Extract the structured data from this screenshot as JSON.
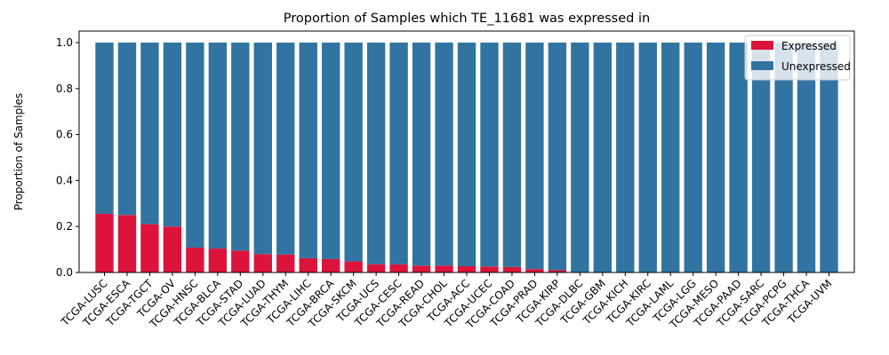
{
  "chart_data": {
    "type": "bar",
    "stacked": true,
    "title": "Proportion of Samples which TE_11681 was expressed in",
    "xlabel": "",
    "ylabel": "Proportion of Samples",
    "ylim": [
      0,
      1.05
    ],
    "yticks": [
      "0.0",
      "0.2",
      "0.4",
      "0.6",
      "0.8",
      "1.0"
    ],
    "legend_position": "top-right",
    "categories": [
      "TCGA-LUSC",
      "TCGA-ESCA",
      "TCGA-TGCT",
      "TCGA-OV",
      "TCGA-HNSC",
      "TCGA-BLCA",
      "TCGA-STAD",
      "TCGA-LUAD",
      "TCGA-THYM",
      "TCGA-LIHC",
      "TCGA-BRCA",
      "TCGA-SKCM",
      "TCGA-UCS",
      "TCGA-CESC",
      "TCGA-READ",
      "TCGA-CHOL",
      "TCGA-ACC",
      "TCGA-UCEC",
      "TCGA-COAD",
      "TCGA-PRAD",
      "TCGA-KIRP",
      "TCGA-DLBC",
      "TCGA-GBM",
      "TCGA-KICH",
      "TCGA-KIRC",
      "TCGA-LAML",
      "TCGA-LGG",
      "TCGA-MESO",
      "TCGA-PAAD",
      "TCGA-SARC",
      "TCGA-PCPG",
      "TCGA-THCA",
      "TCGA-UVM"
    ],
    "series": [
      {
        "name": "Expressed",
        "color": "#dc143c",
        "values": [
          0.255,
          0.25,
          0.21,
          0.2,
          0.108,
          0.104,
          0.095,
          0.08,
          0.078,
          0.062,
          0.058,
          0.048,
          0.036,
          0.035,
          0.03,
          0.03,
          0.027,
          0.026,
          0.024,
          0.015,
          0.01,
          0,
          0,
          0,
          0,
          0,
          0,
          0,
          0,
          0,
          0,
          0,
          0
        ]
      },
      {
        "name": "Unexpressed",
        "color": "#3274a1",
        "values": [
          0.745,
          0.75,
          0.79,
          0.8,
          0.892,
          0.896,
          0.905,
          0.92,
          0.922,
          0.938,
          0.942,
          0.952,
          0.964,
          0.965,
          0.97,
          0.97,
          0.973,
          0.974,
          0.976,
          0.985,
          0.99,
          1,
          1,
          1,
          1,
          1,
          1,
          1,
          1,
          1,
          1,
          1,
          1
        ]
      }
    ]
  }
}
